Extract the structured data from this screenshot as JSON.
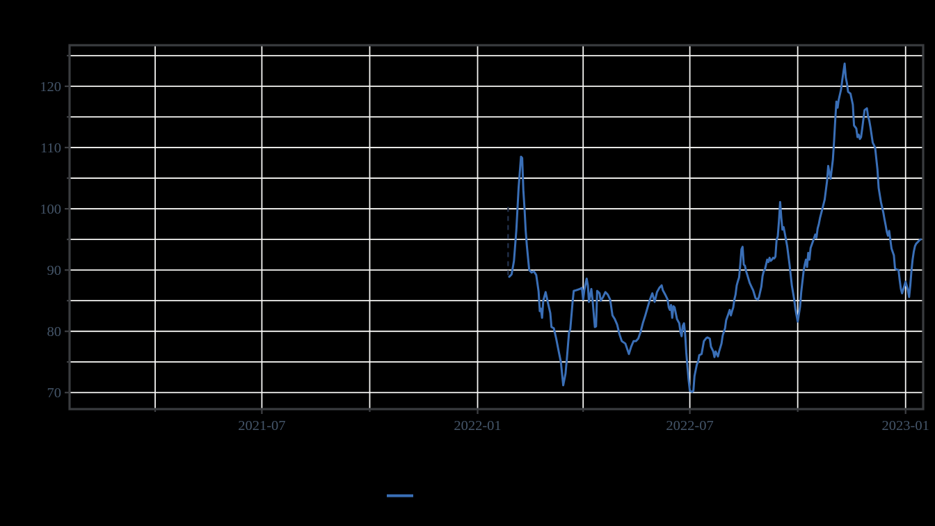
{
  "figure": {
    "background_color": "#000000",
    "title": ""
  },
  "style": {
    "line_color": "#3a6fb7",
    "grid_color": "#f7f7f5",
    "spine_color": "#3a3c3f",
    "tick_color": "#3f4145",
    "tick_label_color": "#445569",
    "marker_color": "#22304a",
    "tick_label_font_size": 20.5
  },
  "legend": {
    "position": "bottom-center",
    "entries": [
      {
        "label": "",
        "swatch_color": "#3a6fb7"
      }
    ]
  },
  "chart_data": {
    "type": "line",
    "title": "",
    "xlabel": "",
    "ylabel": "",
    "grid": true,
    "x_axis": {
      "min": "2021-01-18",
      "max": "2023-01-16",
      "gridline_dates": [
        "2021-04-01",
        "2021-07-01",
        "2021-10-01",
        "2022-01-01",
        "2022-04-01",
        "2022-07-01",
        "2022-10-01",
        "2023-01-01"
      ],
      "tick_labels": [
        {
          "date": "2021-07-01",
          "label": "2021-07"
        },
        {
          "date": "2022-01-01",
          "label": "2022-01"
        },
        {
          "date": "2022-07-01",
          "label": "2022-07"
        },
        {
          "date": "2023-01-01",
          "label": "2023-01"
        }
      ]
    },
    "y_axis": {
      "min": 67.3,
      "max": 126.7,
      "gridline_values": [
        70,
        75,
        80,
        85,
        90,
        95,
        100,
        105,
        110,
        115,
        120,
        125
      ],
      "tick_labels": [
        {
          "value": 70,
          "label": "70"
        },
        {
          "value": 80,
          "label": "80"
        },
        {
          "value": 90,
          "label": "90"
        },
        {
          "value": 100,
          "label": "100"
        },
        {
          "value": 110,
          "label": "110"
        },
        {
          "value": 120,
          "label": "120"
        }
      ]
    },
    "start_gap_marker": {
      "shape": "dashed-vertical-line",
      "date": "2022-01-27",
      "value_from": 100.3,
      "value_to": 89.0
    },
    "series": [
      {
        "name": "series-1",
        "color": "#3a6fb7",
        "points": [
          [
            "2022-01-28",
            88.9
          ],
          [
            "2022-01-30",
            89.3
          ],
          [
            "2022-02-01",
            91.5
          ],
          [
            "2022-02-03",
            96.5
          ],
          [
            "2022-02-05",
            103.5
          ],
          [
            "2022-02-07",
            108.5
          ],
          [
            "2022-02-08",
            108.3
          ],
          [
            "2022-02-09",
            103.0
          ],
          [
            "2022-02-10",
            100.0
          ],
          [
            "2022-02-11",
            96.5
          ],
          [
            "2022-02-12",
            94.0
          ],
          [
            "2022-02-14",
            90.0
          ],
          [
            "2022-02-16",
            89.6
          ],
          [
            "2022-02-18",
            89.8
          ],
          [
            "2022-02-20",
            89.2
          ],
          [
            "2022-02-22",
            86.5
          ],
          [
            "2022-02-23",
            83.3
          ],
          [
            "2022-02-24",
            83.7
          ],
          [
            "2022-02-25",
            82.2
          ],
          [
            "2022-02-26",
            85.0
          ],
          [
            "2022-02-28",
            86.4
          ],
          [
            "2022-03-02",
            84.6
          ],
          [
            "2022-03-04",
            83.0
          ],
          [
            "2022-03-05",
            80.7
          ],
          [
            "2022-03-07",
            80.5
          ],
          [
            "2022-03-09",
            78.8
          ],
          [
            "2022-03-11",
            76.9
          ],
          [
            "2022-03-13",
            75.0
          ],
          [
            "2022-03-15",
            71.2
          ],
          [
            "2022-03-17",
            73.1
          ],
          [
            "2022-03-18",
            75.2
          ],
          [
            "2022-03-20",
            79.9
          ],
          [
            "2022-03-21",
            80.3
          ],
          [
            "2022-03-23",
            84.8
          ],
          [
            "2022-03-24",
            86.6
          ],
          [
            "2022-03-26",
            86.7
          ],
          [
            "2022-03-29",
            86.9
          ],
          [
            "2022-03-31",
            87.1
          ],
          [
            "2022-04-01",
            85.2
          ],
          [
            "2022-04-02",
            86.7
          ],
          [
            "2022-04-04",
            88.6
          ],
          [
            "2022-04-05",
            87.5
          ],
          [
            "2022-04-06",
            84.8
          ],
          [
            "2022-04-08",
            86.9
          ],
          [
            "2022-04-09",
            85.2
          ],
          [
            "2022-04-11",
            80.7
          ],
          [
            "2022-04-12",
            80.8
          ],
          [
            "2022-04-13",
            86.6
          ],
          [
            "2022-04-15",
            86.2
          ],
          [
            "2022-04-16",
            85.0
          ],
          [
            "2022-04-18",
            85.6
          ],
          [
            "2022-04-20",
            86.4
          ],
          [
            "2022-04-22",
            86.0
          ],
          [
            "2022-04-24",
            85.2
          ],
          [
            "2022-04-26",
            82.6
          ],
          [
            "2022-04-28",
            82.0
          ],
          [
            "2022-04-30",
            81.1
          ],
          [
            "2022-05-02",
            79.5
          ],
          [
            "2022-05-04",
            78.4
          ],
          [
            "2022-05-07",
            78.0
          ],
          [
            "2022-05-10",
            76.3
          ],
          [
            "2022-05-12",
            77.5
          ],
          [
            "2022-05-14",
            78.4
          ],
          [
            "2022-05-16",
            78.4
          ],
          [
            "2022-05-18",
            78.8
          ],
          [
            "2022-05-20",
            79.9
          ],
          [
            "2022-05-22",
            81.4
          ],
          [
            "2022-05-24",
            82.6
          ],
          [
            "2022-05-26",
            83.9
          ],
          [
            "2022-05-28",
            85.2
          ],
          [
            "2022-05-30",
            86.2
          ],
          [
            "2022-06-01",
            84.8
          ],
          [
            "2022-06-03",
            86.4
          ],
          [
            "2022-06-05",
            87.1
          ],
          [
            "2022-06-07",
            87.5
          ],
          [
            "2022-06-08",
            86.7
          ],
          [
            "2022-06-10",
            86.0
          ],
          [
            "2022-06-12",
            85.2
          ],
          [
            "2022-06-13",
            83.9
          ],
          [
            "2022-06-14",
            83.5
          ],
          [
            "2022-06-15",
            84.3
          ],
          [
            "2022-06-16",
            82.2
          ],
          [
            "2022-06-17",
            84.1
          ],
          [
            "2022-06-18",
            83.9
          ],
          [
            "2022-06-20",
            82.0
          ],
          [
            "2022-06-22",
            81.3
          ],
          [
            "2022-06-23",
            79.9
          ],
          [
            "2022-06-24",
            79.2
          ],
          [
            "2022-06-25",
            80.9
          ],
          [
            "2022-06-26",
            81.3
          ],
          [
            "2022-06-27",
            79.5
          ],
          [
            "2022-06-28",
            76.5
          ],
          [
            "2022-06-29",
            74.2
          ],
          [
            "2022-06-30",
            72.0
          ],
          [
            "2022-07-01",
            70.3
          ],
          [
            "2022-07-03",
            70.1
          ],
          [
            "2022-07-04",
            70.3
          ],
          [
            "2022-07-05",
            72.7
          ],
          [
            "2022-07-07",
            74.6
          ],
          [
            "2022-07-08",
            75.0
          ],
          [
            "2022-07-09",
            76.1
          ],
          [
            "2022-07-11",
            76.3
          ],
          [
            "2022-07-13",
            78.4
          ],
          [
            "2022-07-15",
            78.9
          ],
          [
            "2022-07-16",
            79.0
          ],
          [
            "2022-07-18",
            78.8
          ],
          [
            "2022-07-19",
            77.5
          ],
          [
            "2022-07-21",
            76.7
          ],
          [
            "2022-07-22",
            75.8
          ],
          [
            "2022-07-23",
            76.7
          ],
          [
            "2022-07-25",
            75.9
          ],
          [
            "2022-07-26",
            76.7
          ],
          [
            "2022-07-28",
            78.0
          ],
          [
            "2022-07-29",
            79.3
          ],
          [
            "2022-07-31",
            80.5
          ],
          [
            "2022-08-01",
            81.8
          ],
          [
            "2022-08-03",
            82.9
          ],
          [
            "2022-08-04",
            83.5
          ],
          [
            "2022-08-05",
            82.6
          ],
          [
            "2022-08-06",
            83.3
          ],
          [
            "2022-08-07",
            83.9
          ],
          [
            "2022-08-08",
            85.2
          ],
          [
            "2022-08-09",
            86.0
          ],
          [
            "2022-08-10",
            87.5
          ],
          [
            "2022-08-11",
            88.2
          ],
          [
            "2022-08-12",
            88.8
          ],
          [
            "2022-08-13",
            90.9
          ],
          [
            "2022-08-14",
            93.4
          ],
          [
            "2022-08-15",
            93.8
          ],
          [
            "2022-08-16",
            90.9
          ],
          [
            "2022-08-17",
            90.7
          ],
          [
            "2022-08-18",
            89.8
          ],
          [
            "2022-08-19",
            89.2
          ],
          [
            "2022-08-21",
            87.9
          ],
          [
            "2022-08-23",
            87.1
          ],
          [
            "2022-08-24",
            86.7
          ],
          [
            "2022-08-26",
            85.4
          ],
          [
            "2022-08-28",
            85.2
          ],
          [
            "2022-08-29",
            85.6
          ],
          [
            "2022-08-31",
            87.3
          ],
          [
            "2022-09-01",
            89.0
          ],
          [
            "2022-09-02",
            89.8
          ],
          [
            "2022-09-03",
            90.1
          ],
          [
            "2022-09-05",
            91.7
          ],
          [
            "2022-09-06",
            91.3
          ],
          [
            "2022-09-07",
            92.0
          ],
          [
            "2022-09-08",
            91.5
          ],
          [
            "2022-09-09",
            91.7
          ],
          [
            "2022-09-10",
            92.0
          ],
          [
            "2022-09-11",
            91.9
          ],
          [
            "2022-09-12",
            92.2
          ],
          [
            "2022-09-13",
            94.9
          ],
          [
            "2022-09-14",
            95.5
          ],
          [
            "2022-09-15",
            98.0
          ],
          [
            "2022-09-16",
            101.1
          ],
          [
            "2022-09-17",
            98.5
          ],
          [
            "2022-09-18",
            96.6
          ],
          [
            "2022-09-19",
            97.0
          ],
          [
            "2022-09-20",
            96.0
          ],
          [
            "2022-09-22",
            93.9
          ],
          [
            "2022-09-24",
            90.9
          ],
          [
            "2022-09-26",
            87.5
          ],
          [
            "2022-09-28",
            85.2
          ],
          [
            "2022-09-29",
            83.7
          ],
          [
            "2022-09-30",
            82.6
          ],
          [
            "2022-10-01",
            81.6
          ],
          [
            "2022-10-03",
            84.0
          ],
          [
            "2022-10-04",
            86.4
          ],
          [
            "2022-10-06",
            89.8
          ],
          [
            "2022-10-07",
            90.9
          ],
          [
            "2022-10-08",
            91.7
          ],
          [
            "2022-10-09",
            90.5
          ],
          [
            "2022-10-10",
            92.8
          ],
          [
            "2022-10-11",
            91.7
          ],
          [
            "2022-10-12",
            93.6
          ],
          [
            "2022-10-14",
            94.7
          ],
          [
            "2022-10-16",
            95.8
          ],
          [
            "2022-10-17",
            95.3
          ],
          [
            "2022-10-18",
            96.8
          ],
          [
            "2022-10-19",
            97.5
          ],
          [
            "2022-10-20",
            98.5
          ],
          [
            "2022-10-22",
            100.0
          ],
          [
            "2022-10-24",
            101.5
          ],
          [
            "2022-10-26",
            104.5
          ],
          [
            "2022-10-27",
            107.0
          ],
          [
            "2022-10-29",
            104.9
          ],
          [
            "2022-10-31",
            108.0
          ],
          [
            "2022-11-01",
            111.0
          ],
          [
            "2022-11-02",
            114.5
          ],
          [
            "2022-11-03",
            117.5
          ],
          [
            "2022-11-04",
            116.5
          ],
          [
            "2022-11-05",
            117.8
          ],
          [
            "2022-11-07",
            119.5
          ],
          [
            "2022-11-08",
            121.0
          ],
          [
            "2022-11-10",
            123.7
          ],
          [
            "2022-11-11",
            121.4
          ],
          [
            "2022-11-12",
            120.5
          ],
          [
            "2022-11-13",
            119.1
          ],
          [
            "2022-11-15",
            118.8
          ],
          [
            "2022-11-17",
            117.0
          ],
          [
            "2022-11-18",
            113.6
          ],
          [
            "2022-11-20",
            113.1
          ],
          [
            "2022-11-21",
            111.7
          ],
          [
            "2022-11-22",
            112.1
          ],
          [
            "2022-11-23",
            111.4
          ],
          [
            "2022-11-24",
            111.7
          ],
          [
            "2022-11-25",
            113.1
          ],
          [
            "2022-11-27",
            116.1
          ],
          [
            "2022-11-29",
            116.4
          ],
          [
            "2022-11-30",
            115.1
          ],
          [
            "2022-12-01",
            114.4
          ],
          [
            "2022-12-02",
            113.3
          ],
          [
            "2022-12-04",
            110.8
          ],
          [
            "2022-12-05",
            110.4
          ],
          [
            "2022-12-06",
            110.0
          ],
          [
            "2022-12-08",
            106.4
          ],
          [
            "2022-12-09",
            103.4
          ],
          [
            "2022-12-11",
            101.1
          ],
          [
            "2022-12-13",
            99.4
          ],
          [
            "2022-12-14",
            98.3
          ],
          [
            "2022-12-15",
            97.3
          ],
          [
            "2022-12-16",
            96.2
          ],
          [
            "2022-12-17",
            95.6
          ],
          [
            "2022-12-18",
            96.4
          ],
          [
            "2022-12-20",
            93.5
          ],
          [
            "2022-12-22",
            92.4
          ],
          [
            "2022-12-23",
            90.3
          ],
          [
            "2022-12-24",
            90.1
          ],
          [
            "2022-12-26",
            90.0
          ],
          [
            "2022-12-27",
            88.3
          ],
          [
            "2022-12-28",
            86.9
          ],
          [
            "2022-12-29",
            86.2
          ],
          [
            "2023-01-01",
            88.1
          ],
          [
            "2023-01-03",
            86.7
          ],
          [
            "2023-01-04",
            85.6
          ],
          [
            "2023-01-05",
            87.5
          ],
          [
            "2023-01-06",
            89.8
          ],
          [
            "2023-01-07",
            91.7
          ],
          [
            "2023-01-08",
            93.0
          ],
          [
            "2023-01-09",
            93.9
          ],
          [
            "2023-01-10",
            94.3
          ],
          [
            "2023-01-12",
            94.7
          ],
          [
            "2023-01-13",
            94.9
          ],
          [
            "2023-01-14",
            95.0
          ]
        ]
      }
    ]
  }
}
